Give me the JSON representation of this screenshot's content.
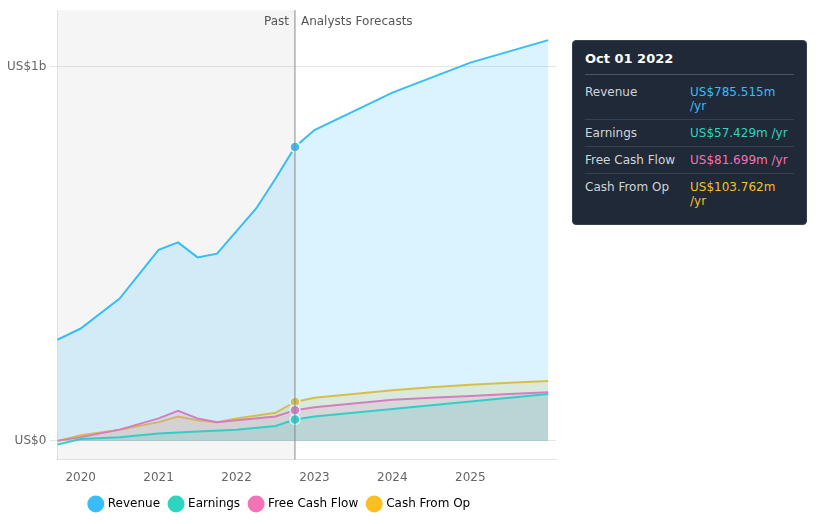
{
  "chart_data": {
    "type": "line",
    "series": [
      {
        "name": "Revenue",
        "color": "#38bdf8",
        "x": [
          2019.7,
          2020.0,
          2020.5,
          2021.0,
          2021.25,
          2021.5,
          2021.75,
          2022.0,
          2022.25,
          2022.5,
          2022.75,
          2023.0,
          2023.5,
          2024.0,
          2024.5,
          2025.0,
          2025.5,
          2026.0
        ],
        "values": [
          0.27,
          0.3,
          0.38,
          0.51,
          0.53,
          0.49,
          0.5,
          0.56,
          0.62,
          0.7,
          0.785,
          0.83,
          0.88,
          0.93,
          0.97,
          1.01,
          1.04,
          1.07
        ]
      },
      {
        "name": "Earnings",
        "color": "#2dd4bf",
        "x": [
          2019.7,
          2020.0,
          2020.5,
          2021.0,
          2021.5,
          2022.0,
          2022.5,
          2022.75,
          2023.0,
          2023.5,
          2024.0,
          2024.5,
          2025.0,
          2025.5,
          2026.0
        ],
        "values": [
          -0.01,
          0.005,
          0.01,
          0.02,
          0.025,
          0.03,
          0.04,
          0.057,
          0.065,
          0.075,
          0.085,
          0.095,
          0.105,
          0.115,
          0.125
        ]
      },
      {
        "name": "Free Cash Flow",
        "color": "#f472b6",
        "x": [
          2019.7,
          2020.0,
          2020.5,
          2021.0,
          2021.25,
          2021.5,
          2021.75,
          2022.0,
          2022.5,
          2022.75,
          2023.0,
          2023.5,
          2024.0,
          2024.5,
          2025.0,
          2025.5,
          2026.0
        ],
        "values": [
          0.0,
          0.01,
          0.03,
          0.06,
          0.08,
          0.06,
          0.05,
          0.055,
          0.065,
          0.082,
          0.09,
          0.1,
          0.11,
          0.115,
          0.12,
          0.125,
          0.13
        ]
      },
      {
        "name": "Cash From Op",
        "color": "#fbbf24",
        "x": [
          2019.7,
          2020.0,
          2020.5,
          2021.0,
          2021.25,
          2021.5,
          2021.75,
          2022.0,
          2022.5,
          2022.75,
          2023.0,
          2023.5,
          2024.0,
          2024.5,
          2025.0,
          2025.5,
          2026.0
        ],
        "values": [
          0.0,
          0.015,
          0.03,
          0.05,
          0.065,
          0.055,
          0.05,
          0.06,
          0.075,
          0.104,
          0.115,
          0.125,
          0.135,
          0.143,
          0.15,
          0.155,
          0.16
        ]
      }
    ],
    "xlim": [
      2019.7,
      2026.1
    ],
    "xticks": [
      2020,
      2021,
      2022,
      2023,
      2024,
      2025
    ],
    "ylim": [
      -0.05,
      1.15
    ],
    "yticks": [
      {
        "value": 0,
        "label": "US$0"
      },
      {
        "value": 1,
        "label": "US$1b"
      }
    ],
    "grid": true,
    "legend": "bottom",
    "annotations": [
      {
        "x": 2022.75,
        "text_left": "Past",
        "text_right": "Analysts Forecasts"
      }
    ],
    "tooltip": {
      "title": "Oct 01 2022",
      "rows": [
        {
          "label": "Revenue",
          "value": "US$785.515m /yr",
          "color": "#38bdf8"
        },
        {
          "label": "Earnings",
          "value": "US$57.429m /yr",
          "color": "#2dd4bf"
        },
        {
          "label": "Free Cash Flow",
          "value": "US$81.699m /yr",
          "color": "#f472b6"
        },
        {
          "label": "Cash From Op",
          "value": "US$103.762m /yr",
          "color": "#fbbf24"
        }
      ]
    }
  }
}
